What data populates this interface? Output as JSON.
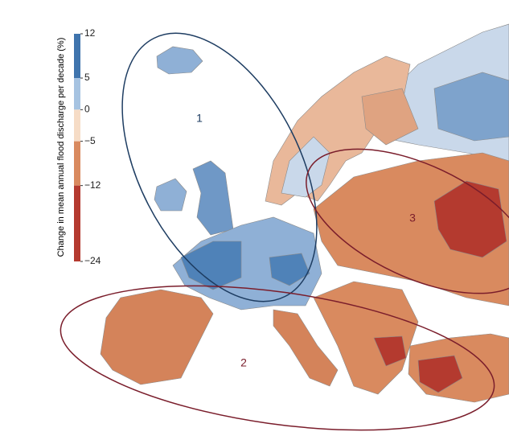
{
  "colorbar": {
    "label": "Change in mean annual flood discharge per decade (%)",
    "lim": [
      -24,
      12
    ],
    "ticks": [
      12,
      5,
      0,
      {
        "value": -5,
        "label": "−5"
      },
      {
        "value": -12,
        "label": "−12"
      },
      {
        "value": -24,
        "label": "−24"
      }
    ],
    "colors": [
      "#3f74ad",
      "#a6c3e1",
      "#f6dcc6",
      "#d98a5f",
      "#b43a2f"
    ]
  },
  "regions": [
    {
      "label": "1",
      "color": "#1e3d62"
    },
    {
      "label": "2",
      "color": "#7a1d2b"
    },
    {
      "label": "3",
      "color": "#7a1d2b"
    }
  ]
}
